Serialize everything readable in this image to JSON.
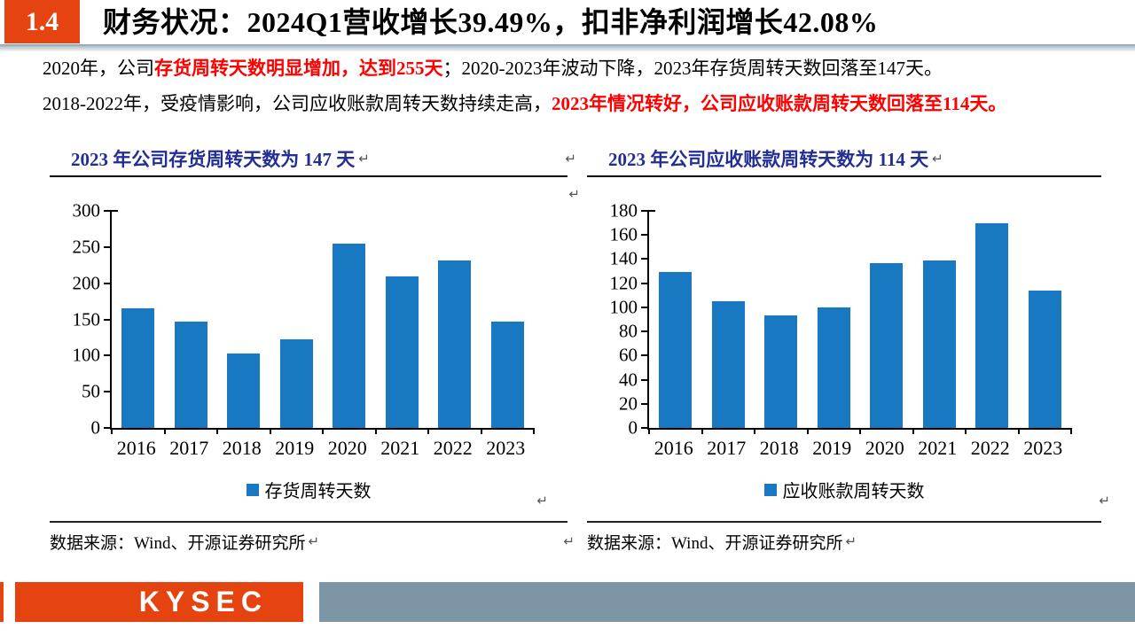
{
  "header": {
    "section_number": "1.4",
    "title": "财务状况：2024Q1营收增长39.49%，扣非净利润增长42.08%"
  },
  "summary": {
    "line1": [
      {
        "text": "2020年，公司",
        "red": false
      },
      {
        "text": "存货周转天数明显增加，达到255天",
        "red": true
      },
      {
        "text": "；2020-2023年波动下降，2023年存货周转天数回落至147天。",
        "red": false
      }
    ],
    "line2": [
      {
        "text": "2018-2022年，受疫情影响，公司应收账款周转天数持续走高，",
        "red": false
      },
      {
        "text": "2023年情况转好，公司应收账款周转天数回落至114天。",
        "red": true
      }
    ]
  },
  "panels": [
    {
      "title": "2023 年公司存货周转天数为 147 天",
      "legend": "存货周转天数",
      "source": "数据来源：Wind、开源证券研究所"
    },
    {
      "title": "2023 年公司应收账款周转天数为 114 天",
      "legend": "应收账款周转天数",
      "source": "数据来源：Wind、开源证券研究所"
    }
  ],
  "chart_data": [
    {
      "type": "bar",
      "title": "2023 年公司存货周转天数为 147 天",
      "categories": [
        "2016",
        "2017",
        "2018",
        "2019",
        "2020",
        "2021",
        "2022",
        "2023"
      ],
      "values": [
        165,
        147,
        103,
        122,
        255,
        209,
        231,
        147
      ],
      "xlabel": "",
      "ylabel": "",
      "ylim": [
        0,
        300
      ],
      "ystep": 50,
      "grid": false,
      "legend": [
        "存货周转天数"
      ],
      "legend_position": "bottom",
      "bar_color": "#1878C2"
    },
    {
      "type": "bar",
      "title": "2023 年公司应收账款周转天数为 114 天",
      "categories": [
        "2016",
        "2017",
        "2018",
        "2019",
        "2020",
        "2021",
        "2022",
        "2023"
      ],
      "values": [
        129,
        105,
        93,
        100,
        137,
        139,
        170,
        114
      ],
      "xlabel": "",
      "ylabel": "",
      "ylim": [
        0,
        180
      ],
      "ystep": 20,
      "grid": false,
      "legend": [
        "应收账款周转天数"
      ],
      "legend_position": "bottom",
      "bar_color": "#1878C2"
    }
  ],
  "footer": {
    "logo_text": "KYSEC"
  },
  "marks": {
    "pilcrow": "↵"
  },
  "colors": {
    "accent_red": "#E5430F",
    "text_red": "#FF0000",
    "title_navy": "#232E94",
    "bar_blue": "#1878C2",
    "footer_slate": "#7D96A5"
  }
}
